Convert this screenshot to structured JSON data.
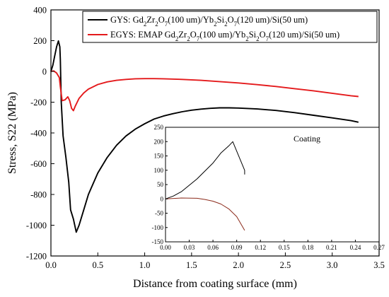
{
  "chart_data": [
    {
      "id": "main",
      "type": "line",
      "xlabel": "Distance from coating surface (mm)",
      "ylabel": "Stress, S22 (MPa)",
      "xlim": [
        0.0,
        3.5
      ],
      "ylim": [
        -1200,
        400
      ],
      "xticks": [
        "0.0",
        "0.5",
        "1.0",
        "1.5",
        "2.0",
        "2.5",
        "3.0",
        "3.5"
      ],
      "xtick_values": [
        0.0,
        0.5,
        1.0,
        1.5,
        2.0,
        2.5,
        3.0,
        3.5
      ],
      "yticks": [
        "-1200",
        "-1000",
        "-800",
        "-600",
        "-400",
        "-200",
        "0",
        "200",
        "400"
      ],
      "ytick_values": [
        -1200,
        -1000,
        -800,
        -600,
        -400,
        -200,
        0,
        200,
        400
      ],
      "legend_position": "top-right",
      "series": [
        {
          "name": "GYS",
          "legend_parts": [
            {
              "t": "GYS: Gd"
            },
            {
              "t": "2",
              "sub": true
            },
            {
              "t": "Zr"
            },
            {
              "t": "2",
              "sub": true
            },
            {
              "t": "O"
            },
            {
              "t": "7",
              "sub": true
            },
            {
              "t": "(100 um)/Yb"
            },
            {
              "t": "2",
              "sub": true
            },
            {
              "t": "Si"
            },
            {
              "t": "2",
              "sub": true
            },
            {
              "t": "O"
            },
            {
              "t": "7",
              "sub": true
            },
            {
              "t": "(120 um)/Si(50 um)"
            }
          ],
          "color": "#000000",
          "points": [
            [
              0.0,
              0
            ],
            [
              0.02,
              40
            ],
            [
              0.04,
              100
            ],
            [
              0.06,
              160
            ],
            [
              0.08,
              198
            ],
            [
              0.095,
              160
            ],
            [
              0.1,
              80
            ],
            [
              0.11,
              -200
            ],
            [
              0.13,
              -420
            ],
            [
              0.16,
              -560
            ],
            [
              0.19,
              -720
            ],
            [
              0.21,
              -900
            ],
            [
              0.24,
              -960
            ],
            [
              0.27,
              -1045
            ],
            [
              0.3,
              -1000
            ],
            [
              0.35,
              -900
            ],
            [
              0.4,
              -800
            ],
            [
              0.5,
              -660
            ],
            [
              0.6,
              -560
            ],
            [
              0.7,
              -480
            ],
            [
              0.8,
              -420
            ],
            [
              0.9,
              -375
            ],
            [
              1.0,
              -340
            ],
            [
              1.1,
              -310
            ],
            [
              1.2,
              -290
            ],
            [
              1.3,
              -275
            ],
            [
              1.4,
              -262
            ],
            [
              1.5,
              -252
            ],
            [
              1.6,
              -245
            ],
            [
              1.7,
              -240
            ],
            [
              1.8,
              -237
            ],
            [
              1.9,
              -237
            ],
            [
              2.0,
              -238
            ],
            [
              2.2,
              -244
            ],
            [
              2.4,
              -254
            ],
            [
              2.6,
              -268
            ],
            [
              2.8,
              -285
            ],
            [
              3.0,
              -302
            ],
            [
              3.2,
              -320
            ],
            [
              3.28,
              -330
            ]
          ]
        },
        {
          "name": "EGYS",
          "legend_parts": [
            {
              "t": "EGYS: EMAP Gd"
            },
            {
              "t": "2",
              "sub": true
            },
            {
              "t": "Zr"
            },
            {
              "t": "2",
              "sub": true
            },
            {
              "t": "O"
            },
            {
              "t": "7",
              "sub": true
            },
            {
              "t": "(100 um)/Yb"
            },
            {
              "t": "2",
              "sub": true
            },
            {
              "t": "Si"
            },
            {
              "t": "2",
              "sub": true
            },
            {
              "t": "O"
            },
            {
              "t": "7",
              "sub": true
            },
            {
              "t": "(120 um)/Si(50 um)"
            }
          ],
          "color": "#e41a1c",
          "points": [
            [
              0.0,
              0
            ],
            [
              0.03,
              3
            ],
            [
              0.06,
              -10
            ],
            [
              0.09,
              -40
            ],
            [
              0.1,
              -100
            ],
            [
              0.12,
              -190
            ],
            [
              0.15,
              -185
            ],
            [
              0.18,
              -165
            ],
            [
              0.2,
              -190
            ],
            [
              0.22,
              -240
            ],
            [
              0.24,
              -255
            ],
            [
              0.26,
              -225
            ],
            [
              0.3,
              -175
            ],
            [
              0.35,
              -140
            ],
            [
              0.4,
              -115
            ],
            [
              0.5,
              -85
            ],
            [
              0.6,
              -68
            ],
            [
              0.7,
              -58
            ],
            [
              0.8,
              -52
            ],
            [
              0.9,
              -48
            ],
            [
              1.0,
              -47
            ],
            [
              1.1,
              -47
            ],
            [
              1.2,
              -48
            ],
            [
              1.4,
              -52
            ],
            [
              1.6,
              -58
            ],
            [
              1.8,
              -66
            ],
            [
              2.0,
              -75
            ],
            [
              2.2,
              -86
            ],
            [
              2.4,
              -98
            ],
            [
              2.6,
              -112
            ],
            [
              2.8,
              -126
            ],
            [
              3.0,
              -142
            ],
            [
              3.2,
              -158
            ],
            [
              3.28,
              -163
            ]
          ]
        }
      ]
    },
    {
      "id": "inset",
      "type": "line",
      "title": "Coating",
      "xlim": [
        0.0,
        0.27
      ],
      "ylim": [
        -150,
        250
      ],
      "xticks": [
        "0.00",
        "0.03",
        "0.06",
        "0.09",
        "0.12",
        "0.15",
        "0.18",
        "0.21",
        "0.24",
        "0.27"
      ],
      "xtick_values": [
        0.0,
        0.03,
        0.06,
        0.09,
        0.12,
        0.15,
        0.18,
        0.21,
        0.24,
        0.27
      ],
      "yticks": [
        "-150",
        "-100",
        "-50",
        "0",
        "50",
        "100",
        "150",
        "200",
        "250"
      ],
      "ytick_values": [
        -150,
        -100,
        -50,
        0,
        50,
        100,
        150,
        200,
        250
      ],
      "series": [
        {
          "color": "#000000",
          "points": [
            [
              0.0,
              0
            ],
            [
              0.01,
              10
            ],
            [
              0.02,
              25
            ],
            [
              0.04,
              70
            ],
            [
              0.06,
              125
            ],
            [
              0.07,
              160
            ],
            [
              0.08,
              185
            ],
            [
              0.085,
              200
            ],
            [
              0.1,
              100
            ],
            [
              0.1,
              85
            ]
          ]
        },
        {
          "color": "#8b2a1a",
          "points": [
            [
              0.0,
              0
            ],
            [
              0.02,
              3
            ],
            [
              0.04,
              2
            ],
            [
              0.05,
              -2
            ],
            [
              0.06,
              -8
            ],
            [
              0.07,
              -18
            ],
            [
              0.08,
              -35
            ],
            [
              0.09,
              -62
            ],
            [
              0.1,
              -110
            ]
          ]
        }
      ]
    }
  ]
}
